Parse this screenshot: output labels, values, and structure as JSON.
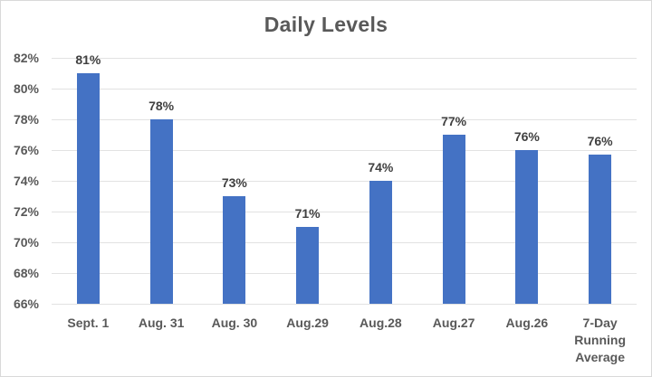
{
  "chart_data": {
    "type": "bar",
    "title": "Daily Levels",
    "categories": [
      "Sept. 1",
      "Aug. 31",
      "Aug. 30",
      "Aug.29",
      "Aug.28",
      "Aug.27",
      "Aug.26",
      "7-Day Running Average"
    ],
    "values": [
      81,
      78,
      73,
      71,
      74,
      77,
      76,
      75.7
    ],
    "data_labels": [
      "81%",
      "78%",
      "73%",
      "71%",
      "74%",
      "77%",
      "76%",
      "76%"
    ],
    "y_ticks_top_to_bottom": [
      "82%",
      "80%",
      "78%",
      "76%",
      "74%",
      "72%",
      "70%",
      "68%",
      "66%"
    ],
    "ylim": [
      66,
      82
    ],
    "y_tick_step": 2,
    "xlabel": "",
    "ylabel": "",
    "grid": true,
    "legend": false,
    "layout_hint": "vertical bars, data labels outside end, gridlines behind bars",
    "colors": {
      "bar": "#4472C4",
      "title": "#595959",
      "axis_labels": "#595959",
      "data_labels": "#404040",
      "gridlines": "#E2E2E2",
      "chart_border": "#D9D9D9",
      "background": "#FFFFFF"
    }
  }
}
